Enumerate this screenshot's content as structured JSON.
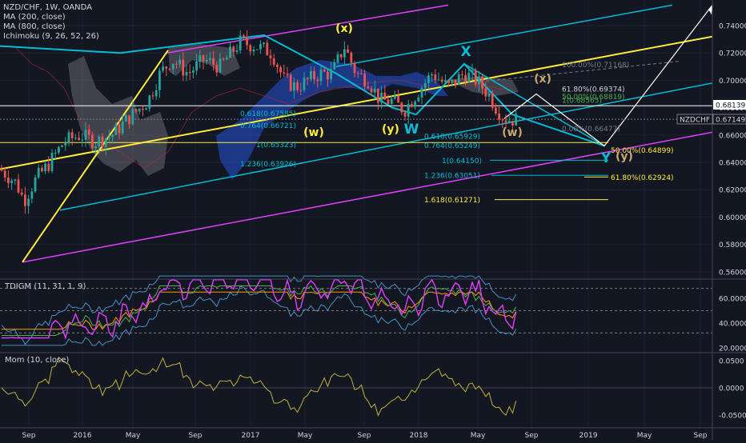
{
  "header": {
    "symbol_line": "NZD/CHF, 1W, OANDA",
    "indicators": [
      "MA (200, close)",
      "MA (800, close)",
      "Ichimoku (9, 26, 52, 26)"
    ]
  },
  "price_pane": {
    "yaxis_ticks": [
      "0.74000",
      "0.72000",
      "0.70000",
      "0.68000",
      "0.66000",
      "0.64000",
      "0.62000",
      "0.60000",
      "0.58000",
      "0.56000"
    ],
    "yaxis_values": [
      0.74,
      0.72,
      0.7,
      0.68,
      0.66,
      0.64,
      0.62,
      0.6,
      0.58,
      0.56
    ],
    "last_price_label": "NZDCHF",
    "last_price": "0.67149",
    "level_label": "0.68139",
    "fib_labels": [
      {
        "text": "100.00%(0.71168)",
        "value": 0.71168,
        "color": "#787b86"
      },
      {
        "text": "61.80%(0.69374)",
        "value": 0.69374,
        "color": "#d1d4dc"
      },
      {
        "text": "50.00%(0.68819)",
        "value": 0.68819,
        "color": "#4caf50"
      },
      {
        "text": "1(0.68565)",
        "value": 0.68565,
        "color": "#4caf50"
      },
      {
        "text": "0.618(0.67585)",
        "value": 0.67585,
        "color": "#00bcd4"
      },
      {
        "text": "0.764(0.66721)",
        "value": 0.66721,
        "color": "#00bcd4"
      },
      {
        "text": "0.00%(0.66477)",
        "value": 0.66477,
        "color": "#787b86"
      },
      {
        "text": "0.618(0.65929)",
        "value": 0.65929,
        "color": "#00bcd4"
      },
      {
        "text": "0.764(0.65249)",
        "value": 0.65249,
        "color": "#00bcd4"
      },
      {
        "text": "1(0.65323)",
        "value": 0.65323,
        "color": "#00bcd4"
      },
      {
        "text": "50.00%(0.64899)",
        "value": 0.64899,
        "color": "#ffeb3b"
      },
      {
        "text": "1(0.64150)",
        "value": 0.6415,
        "color": "#00bcd4"
      },
      {
        "text": "1.236(0.63926)",
        "value": 0.63926,
        "color": "#00bcd4"
      },
      {
        "text": "1.236(0.63051)",
        "value": 0.63051,
        "color": "#00bcd4"
      },
      {
        "text": "61.80%(0.62924)",
        "value": 0.62924,
        "color": "#ffeb3b"
      },
      {
        "text": "1.618(0.61271)",
        "value": 0.61271,
        "color": "#ffeb3b"
      }
    ],
    "wave_labels": [
      {
        "text": "(x)",
        "color": "#ffeb3b"
      },
      {
        "text": "(w)",
        "color": "#ffeb3b"
      },
      {
        "text": "(y)",
        "color": "#ffeb3b"
      },
      {
        "text": "W",
        "color": "#00bcd4"
      },
      {
        "text": "X",
        "color": "#00bcd4"
      },
      {
        "text": "(x)",
        "color": "#c9a96e"
      },
      {
        "text": "(w)",
        "color": "#c9a96e"
      },
      {
        "text": "Y",
        "color": "#00bcd4"
      },
      {
        "text": "(y)",
        "color": "#c9a96e"
      }
    ]
  },
  "tdigm_pane": {
    "title": "TDIGM (11, 31, 1, 9)",
    "yaxis_ticks": [
      "60.0000",
      "40.0000",
      "20.0000"
    ],
    "yaxis_values": [
      60,
      40,
      20
    ]
  },
  "mom_pane": {
    "title": "Mom (10, close)",
    "yaxis_ticks": [
      "0.0500",
      "0.0000",
      "-0.0500"
    ],
    "yaxis_values": [
      0.05,
      0.0,
      -0.05
    ]
  },
  "xaxis_ticks": [
    "Sep",
    "2016",
    "May",
    "Sep",
    "2017",
    "May",
    "Sep",
    "2018",
    "May",
    "Sep",
    "2019",
    "May",
    "Sep"
  ],
  "chart_data": {
    "type": "line",
    "title": "NZD/CHF, 1W, OANDA",
    "series": [
      {
        "name": "NZD/CHF",
        "x": [
          "2015-08",
          "2015-10",
          "2015-12",
          "2016-02",
          "2016-04",
          "2016-06",
          "2016-08",
          "2016-10",
          "2016-12",
          "2017-02",
          "2017-04",
          "2017-06",
          "2017-08",
          "2017-10",
          "2017-12",
          "2018-02",
          "2018-04",
          "2018-06",
          "2018-07"
        ],
        "values": [
          0.635,
          0.618,
          0.655,
          0.665,
          0.675,
          0.665,
          0.715,
          0.715,
          0.73,
          0.725,
          0.695,
          0.705,
          0.725,
          0.69,
          0.69,
          0.705,
          0.7,
          0.675,
          0.671
        ]
      }
    ],
    "ylim": [
      0.555,
      0.755
    ]
  }
}
